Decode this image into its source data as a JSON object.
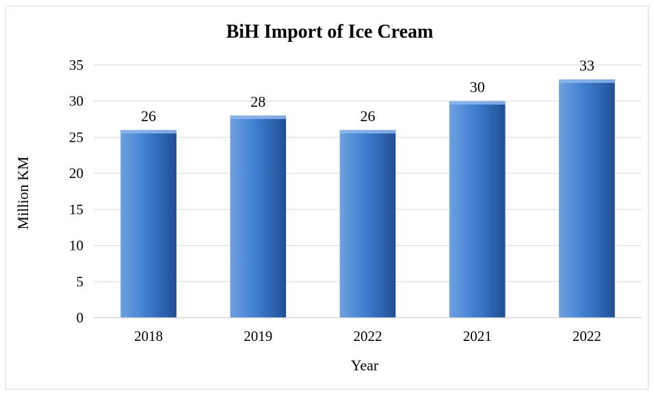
{
  "chart_data": {
    "type": "bar",
    "title": "BiH Import of Ice Cream",
    "xlabel": "Year",
    "ylabel": "Million KM",
    "categories": [
      "2018",
      "2019",
      "2022",
      "2021",
      "2022"
    ],
    "values": [
      26,
      28,
      26,
      30,
      33
    ],
    "data_labels": [
      "26",
      "28",
      "26",
      "30",
      "33"
    ],
    "ylim": [
      0,
      35
    ],
    "yticks": [
      0,
      5,
      10,
      15,
      20,
      25,
      30,
      35
    ],
    "grid": true,
    "legend": "none",
    "colors": {
      "bar_light": "#6fa0e0",
      "bar_mid": "#3f7fd0",
      "bar_dark": "#1f4f95",
      "bar_top": "#8fb8ec"
    }
  }
}
